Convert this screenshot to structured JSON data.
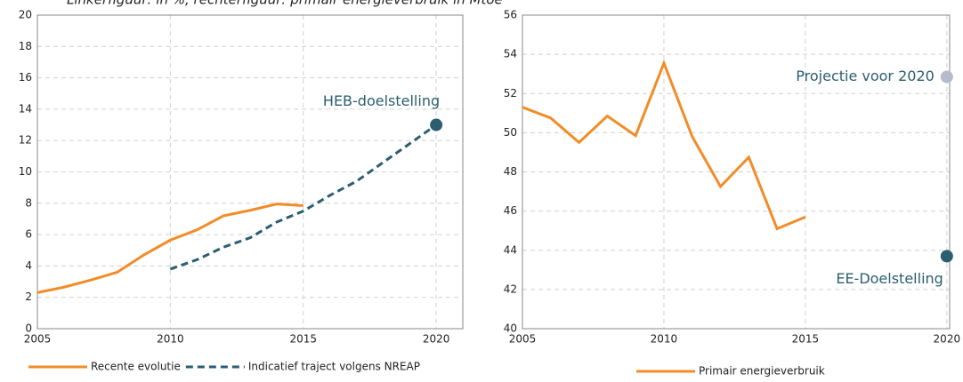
{
  "caption": "Linkerfiguur: in %, rechterfiguur: primair energieverbruik in Mtoe",
  "chart_data": [
    {
      "type": "line",
      "xlim": [
        2005,
        2021
      ],
      "xticks": [
        2005,
        2010,
        2015,
        2020
      ],
      "ylim": [
        0,
        20
      ],
      "yticks": [
        0,
        2,
        4,
        6,
        8,
        10,
        12,
        14,
        16,
        18,
        20
      ],
      "grid": true,
      "series": [
        {
          "name": "Recente evolutie",
          "color": "#f28c28",
          "line_style": "solid",
          "x": [
            2005,
            2006,
            2007,
            2008,
            2009,
            2010,
            2011,
            2012,
            2013,
            2014,
            2015
          ],
          "values": [
            2.3,
            2.65,
            3.1,
            3.6,
            4.7,
            5.65,
            6.3,
            7.2,
            7.55,
            7.95,
            7.85
          ]
        },
        {
          "name": "Indicatief traject volgens NREAP",
          "color": "#2b5e70",
          "line_style": "dashed",
          "x": [
            2010,
            2011,
            2012,
            2013,
            2014,
            2015,
            2016,
            2017,
            2018,
            2019,
            2020
          ],
          "values": [
            3.8,
            4.4,
            5.2,
            5.8,
            6.8,
            7.5,
            8.5,
            9.4,
            10.6,
            11.8,
            13.0
          ]
        }
      ],
      "points": [
        {
          "label": "HEB-doelstelling",
          "x": 2020,
          "value": 13,
          "color": "#2b5e70",
          "label_side": "above"
        }
      ]
    },
    {
      "type": "line",
      "xlim": [
        2005,
        2020.1
      ],
      "xticks": [
        2005,
        2010,
        2015,
        2020
      ],
      "ylim": [
        40,
        56
      ],
      "yticks": [
        40,
        42,
        44,
        46,
        48,
        50,
        52,
        54,
        56
      ],
      "grid": true,
      "series": [
        {
          "name": "Primair energieverbruik",
          "color": "#f28c28",
          "line_style": "solid",
          "x": [
            2005,
            2006,
            2007,
            2008,
            2009,
            2010,
            2011,
            2012,
            2013,
            2014,
            2015
          ],
          "values": [
            51.3,
            50.75,
            49.5,
            50.85,
            49.85,
            53.55,
            49.8,
            47.25,
            48.75,
            45.1,
            45.7
          ]
        }
      ],
      "points": [
        {
          "label": "Projectie voor 2020",
          "x": 2020,
          "value": 52.85,
          "color": "#b4bccb",
          "label_side": "left"
        },
        {
          "label": "EE-Doelstelling",
          "x": 2020,
          "value": 43.7,
          "color": "#2b5e70",
          "label_side": "below"
        }
      ]
    }
  ]
}
